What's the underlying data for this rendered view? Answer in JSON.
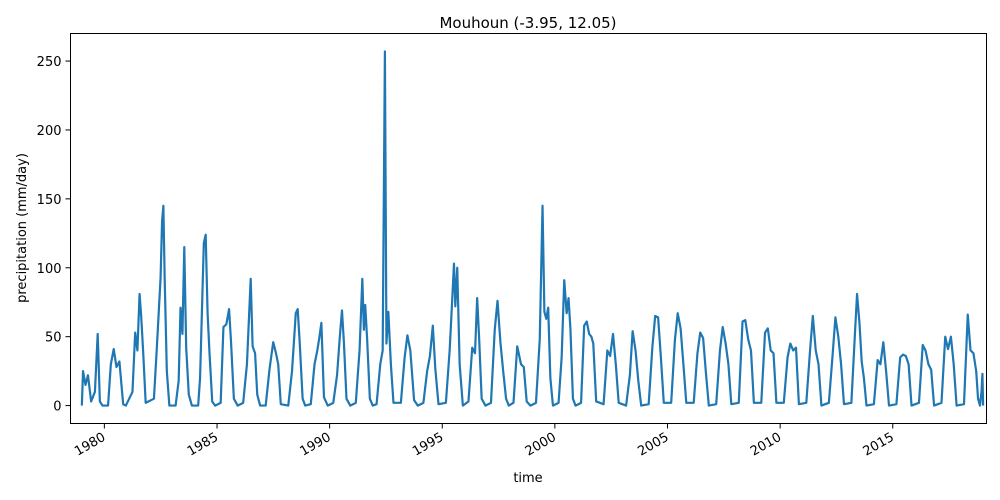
{
  "chart_data": {
    "type": "line",
    "title": "Mouhoun (-3.95, 12.05)",
    "xlabel": "time",
    "ylabel": "precipitation (mm/day)",
    "xlim": [
      "1978-07-01",
      "2019-03-01"
    ],
    "ylim": [
      -13,
      270
    ],
    "x_ticks": [
      {
        "date": "1980-01-01",
        "label": "1980"
      },
      {
        "date": "1985-01-01",
        "label": "1985"
      },
      {
        "date": "1990-01-01",
        "label": "1990"
      },
      {
        "date": "1995-01-01",
        "label": "1995"
      },
      {
        "date": "2000-01-01",
        "label": "2000"
      },
      {
        "date": "2005-01-01",
        "label": "2005"
      },
      {
        "date": "2010-01-01",
        "label": "2010"
      },
      {
        "date": "2015-01-01",
        "label": "2015"
      }
    ],
    "y_ticks": [
      0,
      50,
      100,
      150,
      200,
      250
    ],
    "grid": false,
    "legend": false,
    "series_color": "#1f77b4",
    "series": [
      {
        "points": [
          [
            "1979-01-01",
            0
          ],
          [
            "1979-01-20",
            25
          ],
          [
            "1979-03-01",
            15
          ],
          [
            "1979-04-10",
            22
          ],
          [
            "1979-06-01",
            3
          ],
          [
            "1979-08-01",
            10
          ],
          [
            "1979-09-15",
            52
          ],
          [
            "1979-10-20",
            3
          ],
          [
            "1979-12-01",
            0
          ],
          [
            "1980-03-01",
            0
          ],
          [
            "1980-04-15",
            30
          ],
          [
            "1980-06-01",
            41
          ],
          [
            "1980-07-15",
            28
          ],
          [
            "1980-09-01",
            32
          ],
          [
            "1980-11-01",
            1
          ],
          [
            "1980-12-15",
            0
          ],
          [
            "1981-04-01",
            10
          ],
          [
            "1981-05-15",
            53
          ],
          [
            "1981-06-20",
            40
          ],
          [
            "1981-07-25",
            81
          ],
          [
            "1981-08-20",
            65
          ],
          [
            "1981-09-20",
            40
          ],
          [
            "1981-11-01",
            2
          ],
          [
            "1982-03-15",
            5
          ],
          [
            "1982-05-01",
            42
          ],
          [
            "1982-07-01",
            93
          ],
          [
            "1982-07-25",
            134
          ],
          [
            "1982-08-15",
            145
          ],
          [
            "1982-09-05",
            92
          ],
          [
            "1982-10-10",
            25
          ],
          [
            "1982-11-20",
            0
          ],
          [
            "1983-03-01",
            0
          ],
          [
            "1983-04-20",
            18
          ],
          [
            "1983-05-20",
            71
          ],
          [
            "1983-06-20",
            52
          ],
          [
            "1983-07-20",
            115
          ],
          [
            "1983-08-20",
            42
          ],
          [
            "1983-10-01",
            8
          ],
          [
            "1983-11-20",
            0
          ],
          [
            "1984-03-01",
            0
          ],
          [
            "1984-04-01",
            20
          ],
          [
            "1984-06-01",
            118
          ],
          [
            "1984-07-01",
            124
          ],
          [
            "1984-08-01",
            67
          ],
          [
            "1984-09-01",
            38
          ],
          [
            "1984-10-15",
            3
          ],
          [
            "1984-12-01",
            0
          ],
          [
            "1985-03-01",
            2
          ],
          [
            "1985-04-15",
            57
          ],
          [
            "1985-06-01",
            59
          ],
          [
            "1985-07-15",
            70
          ],
          [
            "1985-08-15",
            47
          ],
          [
            "1985-10-01",
            5
          ],
          [
            "1985-12-01",
            0
          ],
          [
            "1986-03-01",
            2
          ],
          [
            "1986-05-01",
            30
          ],
          [
            "1986-07-01",
            92
          ],
          [
            "1986-08-01",
            43
          ],
          [
            "1986-09-10",
            38
          ],
          [
            "1986-10-15",
            8
          ],
          [
            "1986-12-01",
            0
          ],
          [
            "1987-03-01",
            0
          ],
          [
            "1987-05-01",
            26
          ],
          [
            "1987-07-01",
            46
          ],
          [
            "1987-08-15",
            38
          ],
          [
            "1987-09-20",
            30
          ],
          [
            "1987-11-01",
            1
          ],
          [
            "1988-03-01",
            0
          ],
          [
            "1988-05-01",
            25
          ],
          [
            "1988-07-01",
            67
          ],
          [
            "1988-08-01",
            70
          ],
          [
            "1988-09-01",
            47
          ],
          [
            "1988-10-20",
            5
          ],
          [
            "1988-12-01",
            0
          ],
          [
            "1989-03-01",
            1
          ],
          [
            "1989-05-01",
            30
          ],
          [
            "1989-06-15",
            40
          ],
          [
            "1989-07-20",
            50
          ],
          [
            "1989-08-20",
            60
          ],
          [
            "1989-10-01",
            6
          ],
          [
            "1989-12-01",
            0
          ],
          [
            "1990-03-01",
            2
          ],
          [
            "1990-05-01",
            22
          ],
          [
            "1990-06-15",
            50
          ],
          [
            "1990-07-20",
            69
          ],
          [
            "1990-08-20",
            46
          ],
          [
            "1990-10-01",
            5
          ],
          [
            "1990-12-01",
            0
          ],
          [
            "1991-03-01",
            2
          ],
          [
            "1991-05-01",
            40
          ],
          [
            "1991-06-15",
            92
          ],
          [
            "1991-07-10",
            55
          ],
          [
            "1991-08-01",
            73
          ],
          [
            "1991-09-01",
            48
          ],
          [
            "1991-10-15",
            5
          ],
          [
            "1991-12-01",
            0
          ],
          [
            "1992-02-01",
            1
          ],
          [
            "1992-04-01",
            30
          ],
          [
            "1992-05-10",
            40
          ],
          [
            "1992-06-15",
            257
          ],
          [
            "1992-07-10",
            45
          ],
          [
            "1992-08-10",
            68
          ],
          [
            "1992-09-20",
            30
          ],
          [
            "1992-11-01",
            2
          ],
          [
            "1993-03-01",
            2
          ],
          [
            "1993-05-01",
            35
          ],
          [
            "1993-06-15",
            51
          ],
          [
            "1993-08-01",
            40
          ],
          [
            "1993-10-01",
            4
          ],
          [
            "1993-12-01",
            0
          ],
          [
            "1994-03-01",
            2
          ],
          [
            "1994-05-01",
            25
          ],
          [
            "1994-06-15",
            36
          ],
          [
            "1994-08-01",
            58
          ],
          [
            "1994-09-10",
            27
          ],
          [
            "1994-11-01",
            1
          ],
          [
            "1995-03-01",
            2
          ],
          [
            "1995-05-01",
            40
          ],
          [
            "1995-06-15",
            80
          ],
          [
            "1995-07-10",
            103
          ],
          [
            "1995-08-01",
            72
          ],
          [
            "1995-09-01",
            100
          ],
          [
            "1995-10-10",
            30
          ],
          [
            "1995-12-01",
            0
          ],
          [
            "1996-03-01",
            3
          ],
          [
            "1996-05-01",
            42
          ],
          [
            "1996-06-15",
            38
          ],
          [
            "1996-07-20",
            78
          ],
          [
            "1996-08-20",
            50
          ],
          [
            "1996-10-01",
            5
          ],
          [
            "1996-12-01",
            0
          ],
          [
            "1997-03-01",
            2
          ],
          [
            "1997-05-01",
            55
          ],
          [
            "1997-06-15",
            76
          ],
          [
            "1997-08-01",
            46
          ],
          [
            "1997-09-15",
            25
          ],
          [
            "1997-11-01",
            5
          ],
          [
            "1997-12-15",
            0
          ],
          [
            "1998-03-01",
            2
          ],
          [
            "1998-05-01",
            43
          ],
          [
            "1998-07-01",
            30
          ],
          [
            "1998-08-15",
            28
          ],
          [
            "1998-10-01",
            3
          ],
          [
            "1998-12-01",
            0
          ],
          [
            "1999-03-01",
            2
          ],
          [
            "1999-05-01",
            48
          ],
          [
            "1999-06-15",
            145
          ],
          [
            "1999-07-15",
            68
          ],
          [
            "1999-08-15",
            63
          ],
          [
            "1999-09-15",
            71
          ],
          [
            "1999-10-20",
            20
          ],
          [
            "1999-12-01",
            0
          ],
          [
            "2000-03-01",
            2
          ],
          [
            "2000-04-20",
            35
          ],
          [
            "2000-06-01",
            91
          ],
          [
            "2000-07-10",
            67
          ],
          [
            "2000-08-10",
            78
          ],
          [
            "2000-09-10",
            55
          ],
          [
            "2000-10-20",
            5
          ],
          [
            "2000-12-01",
            0
          ],
          [
            "2001-03-01",
            2
          ],
          [
            "2001-04-20",
            58
          ],
          [
            "2001-06-01",
            61
          ],
          [
            "2001-07-10",
            52
          ],
          [
            "2001-08-15",
            50
          ],
          [
            "2001-09-15",
            45
          ],
          [
            "2001-11-01",
            3
          ],
          [
            "2002-03-01",
            1
          ],
          [
            "2002-05-01",
            40
          ],
          [
            "2002-06-15",
            36
          ],
          [
            "2002-08-01",
            52
          ],
          [
            "2002-09-15",
            30
          ],
          [
            "2002-11-01",
            2
          ],
          [
            "2003-03-01",
            0
          ],
          [
            "2003-05-01",
            22
          ],
          [
            "2003-06-15",
            54
          ],
          [
            "2003-08-01",
            40
          ],
          [
            "2003-09-15",
            18
          ],
          [
            "2003-11-01",
            0
          ],
          [
            "2004-03-01",
            1
          ],
          [
            "2004-05-01",
            43
          ],
          [
            "2004-06-15",
            65
          ],
          [
            "2004-08-01",
            64
          ],
          [
            "2004-09-15",
            35
          ],
          [
            "2004-11-01",
            2
          ],
          [
            "2005-03-01",
            2
          ],
          [
            "2005-05-01",
            48
          ],
          [
            "2005-06-15",
            67
          ],
          [
            "2005-08-01",
            56
          ],
          [
            "2005-09-15",
            30
          ],
          [
            "2005-11-01",
            2
          ],
          [
            "2006-03-01",
            2
          ],
          [
            "2006-05-01",
            38
          ],
          [
            "2006-06-15",
            53
          ],
          [
            "2006-08-01",
            49
          ],
          [
            "2006-09-15",
            24
          ],
          [
            "2006-11-01",
            0
          ],
          [
            "2007-03-01",
            1
          ],
          [
            "2007-05-01",
            40
          ],
          [
            "2007-06-15",
            57
          ],
          [
            "2007-08-01",
            45
          ],
          [
            "2007-09-15",
            30
          ],
          [
            "2007-11-01",
            1
          ],
          [
            "2008-03-01",
            2
          ],
          [
            "2008-05-01",
            61
          ],
          [
            "2008-06-15",
            62
          ],
          [
            "2008-08-01",
            48
          ],
          [
            "2008-09-15",
            40
          ],
          [
            "2008-11-01",
            2
          ],
          [
            "2009-03-01",
            2
          ],
          [
            "2009-05-01",
            53
          ],
          [
            "2009-06-15",
            56
          ],
          [
            "2009-08-01",
            40
          ],
          [
            "2009-09-15",
            38
          ],
          [
            "2009-11-01",
            2
          ],
          [
            "2010-03-01",
            2
          ],
          [
            "2010-05-01",
            35
          ],
          [
            "2010-06-15",
            45
          ],
          [
            "2010-08-01",
            40
          ],
          [
            "2010-09-15",
            42
          ],
          [
            "2010-11-01",
            1
          ],
          [
            "2011-03-01",
            2
          ],
          [
            "2011-05-01",
            40
          ],
          [
            "2011-06-15",
            65
          ],
          [
            "2011-08-01",
            40
          ],
          [
            "2011-09-15",
            30
          ],
          [
            "2011-11-01",
            0
          ],
          [
            "2012-03-01",
            2
          ],
          [
            "2012-05-01",
            37
          ],
          [
            "2012-06-15",
            64
          ],
          [
            "2012-08-01",
            50
          ],
          [
            "2012-09-15",
            30
          ],
          [
            "2012-11-01",
            1
          ],
          [
            "2013-03-01",
            2
          ],
          [
            "2013-05-01",
            55
          ],
          [
            "2013-06-01",
            81
          ],
          [
            "2013-07-10",
            60
          ],
          [
            "2013-08-15",
            32
          ],
          [
            "2013-09-20",
            20
          ],
          [
            "2013-11-01",
            0
          ],
          [
            "2014-03-01",
            1
          ],
          [
            "2014-05-01",
            33
          ],
          [
            "2014-06-15",
            30
          ],
          [
            "2014-08-01",
            46
          ],
          [
            "2014-09-15",
            25
          ],
          [
            "2014-11-01",
            0
          ],
          [
            "2015-03-01",
            1
          ],
          [
            "2015-05-01",
            35
          ],
          [
            "2015-06-15",
            37
          ],
          [
            "2015-08-01",
            36
          ],
          [
            "2015-09-15",
            30
          ],
          [
            "2015-11-01",
            0
          ],
          [
            "2016-03-01",
            2
          ],
          [
            "2016-05-01",
            44
          ],
          [
            "2016-06-15",
            40
          ],
          [
            "2016-08-01",
            30
          ],
          [
            "2016-09-15",
            26
          ],
          [
            "2016-11-01",
            0
          ],
          [
            "2017-03-01",
            2
          ],
          [
            "2017-05-01",
            50
          ],
          [
            "2017-06-15",
            41
          ],
          [
            "2017-08-01",
            50
          ],
          [
            "2017-09-15",
            30
          ],
          [
            "2017-11-01",
            0
          ],
          [
            "2018-03-01",
            1
          ],
          [
            "2018-05-01",
            66
          ],
          [
            "2018-06-15",
            40
          ],
          [
            "2018-08-01",
            38
          ],
          [
            "2018-09-15",
            25
          ],
          [
            "2018-10-15",
            5
          ],
          [
            "2018-11-15",
            0
          ],
          [
            "2018-12-10",
            10
          ],
          [
            "2018-12-25",
            23
          ],
          [
            "2019-01-05",
            0
          ]
        ]
      }
    ]
  }
}
